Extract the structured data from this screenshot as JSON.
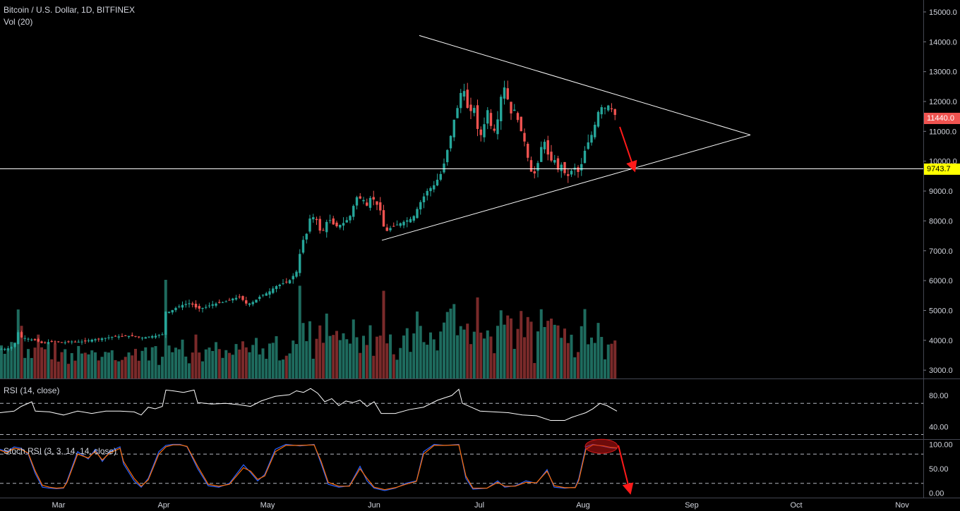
{
  "header": {
    "symbol_line": "Bitcoin / U.S. Dollar, 1D, BITFINEX",
    "volume_label": "Vol (20)"
  },
  "rsi_panel": {
    "label": "RSI (14, close)",
    "ticks": [
      "80.00",
      "40.00"
    ]
  },
  "stoch_panel": {
    "label": "Stoch RSI (3, 3, 14, 14, close)",
    "ticks": [
      "100.00",
      "50.00",
      "0.00"
    ]
  },
  "price_tags": {
    "last": "11440.0",
    "level": "9743.7"
  },
  "colors": {
    "up": "#26a69a",
    "down": "#ef5350",
    "level_tag": "#ffff00",
    "volume_up": "#1e6b5e",
    "volume_down": "#7a2a2a"
  },
  "chart_data": {
    "type": "candlestick",
    "title": "Bitcoin / U.S. Dollar, 1D, BITFINEX",
    "x_labels": [
      "Mar",
      "Apr",
      "May",
      "Jun",
      "Jul",
      "Aug",
      "Sep",
      "Oct",
      "Nov"
    ],
    "y_ticks": [
      "15000.0",
      "14000.0",
      "13000.0",
      "12000.0",
      "11000.0",
      "10000.0",
      "9000.0",
      "8000.0",
      "7000.0",
      "6000.0",
      "5000.0",
      "4000.0",
      "3000.0"
    ],
    "ylim": [
      2650,
      15400
    ],
    "price_path": [
      [
        0,
        3700
      ],
      [
        10,
        3720
      ],
      [
        20,
        3800
      ],
      [
        25,
        4300
      ],
      [
        30,
        4100
      ],
      [
        40,
        4050
      ],
      [
        50,
        4000
      ],
      [
        60,
        3900
      ],
      [
        70,
        3950
      ],
      [
        80,
        3950
      ],
      [
        90,
        3920
      ],
      [
        100,
        3960
      ],
      [
        110,
        3950
      ],
      [
        120,
        3960
      ],
      [
        130,
        4020
      ],
      [
        140,
        4050
      ],
      [
        150,
        4080
      ],
      [
        160,
        4120
      ],
      [
        170,
        4130
      ],
      [
        180,
        4150
      ],
      [
        190,
        4140
      ],
      [
        200,
        4080
      ],
      [
        210,
        4120
      ],
      [
        220,
        4150
      ],
      [
        230,
        4200
      ],
      [
        235,
        5000
      ],
      [
        240,
        4950
      ],
      [
        250,
        5100
      ],
      [
        260,
        5200
      ],
      [
        270,
        5250
      ],
      [
        280,
        5050
      ],
      [
        290,
        5100
      ],
      [
        300,
        5200
      ],
      [
        310,
        5250
      ],
      [
        320,
        5300
      ],
      [
        330,
        5400
      ],
      [
        340,
        5450
      ],
      [
        350,
        5200
      ],
      [
        360,
        5300
      ],
      [
        370,
        5500
      ],
      [
        380,
        5600
      ],
      [
        390,
        5800
      ],
      [
        400,
        5900
      ],
      [
        410,
        6000
      ],
      [
        420,
        6300
      ],
      [
        428,
        7300
      ],
      [
        435,
        7600
      ],
      [
        440,
        8200
      ],
      [
        450,
        8000
      ],
      [
        455,
        7500
      ],
      [
        465,
        8100
      ],
      [
        475,
        7800
      ],
      [
        485,
        7900
      ],
      [
        495,
        8100
      ],
      [
        505,
        8800
      ],
      [
        515,
        8700
      ],
      [
        520,
        8500
      ],
      [
        525,
        8800
      ],
      [
        530,
        8700
      ],
      [
        540,
        8300
      ],
      [
        545,
        7600
      ],
      [
        555,
        7800
      ],
      [
        565,
        7900
      ],
      [
        575,
        8000
      ],
      [
        585,
        8100
      ],
      [
        595,
        8600
      ],
      [
        605,
        9000
      ],
      [
        615,
        9200
      ],
      [
        625,
        9600
      ],
      [
        630,
        10000
      ],
      [
        640,
        11000
      ],
      [
        645,
        11600
      ],
      [
        650,
        11900
      ],
      [
        655,
        12600
      ],
      [
        660,
        12100
      ],
      [
        665,
        11400
      ],
      [
        670,
        12100
      ],
      [
        675,
        11200
      ],
      [
        680,
        10800
      ],
      [
        685,
        11100
      ],
      [
        690,
        11800
      ],
      [
        695,
        11200
      ],
      [
        700,
        11000
      ],
      [
        705,
        11400
      ],
      [
        710,
        12200
      ],
      [
        715,
        12500
      ],
      [
        720,
        12000
      ],
      [
        725,
        11500
      ],
      [
        730,
        11800
      ],
      [
        735,
        11200
      ],
      [
        740,
        10900
      ],
      [
        745,
        10500
      ],
      [
        750,
        9800
      ],
      [
        755,
        9500
      ],
      [
        760,
        9700
      ],
      [
        765,
        10300
      ],
      [
        770,
        10800
      ],
      [
        775,
        10300
      ],
      [
        780,
        10000
      ],
      [
        785,
        10100
      ],
      [
        790,
        9700
      ],
      [
        795,
        9900
      ],
      [
        800,
        9600
      ],
      [
        805,
        9500
      ],
      [
        810,
        9700
      ],
      [
        815,
        9800
      ],
      [
        820,
        9600
      ],
      [
        825,
        10000
      ],
      [
        830,
        10500
      ],
      [
        835,
        10700
      ],
      [
        840,
        11000
      ],
      [
        845,
        11400
      ],
      [
        850,
        11900
      ],
      [
        855,
        11700
      ],
      [
        860,
        11900
      ],
      [
        865,
        11800
      ],
      [
        870,
        11600
      ],
      [
        874,
        11440
      ]
    ],
    "last_price": 11440.0,
    "horizontal_level": 9743.7,
    "triangle": {
      "upper": [
        [
          594,
          14210
        ],
        [
          1063,
          10880
        ]
      ],
      "lower": [
        [
          541,
          7350
        ],
        [
          1063,
          10880
        ]
      ]
    },
    "projection_arrow": [
      [
        878,
        11150
      ],
      [
        898,
        9760
      ]
    ],
    "rsi": {
      "ylim": [
        25,
        100
      ],
      "levels": [
        70,
        30
      ],
      "path": [
        [
          0,
          58
        ],
        [
          20,
          60
        ],
        [
          30,
          66
        ],
        [
          45,
          72
        ],
        [
          50,
          60
        ],
        [
          70,
          59
        ],
        [
          90,
          55
        ],
        [
          110,
          60
        ],
        [
          130,
          57
        ],
        [
          150,
          60
        ],
        [
          170,
          60
        ],
        [
          190,
          59
        ],
        [
          200,
          55
        ],
        [
          210,
          65
        ],
        [
          220,
          63
        ],
        [
          230,
          66
        ],
        [
          235,
          87
        ],
        [
          245,
          86
        ],
        [
          260,
          84
        ],
        [
          275,
          87
        ],
        [
          280,
          71
        ],
        [
          300,
          69
        ],
        [
          320,
          70
        ],
        [
          340,
          68
        ],
        [
          355,
          66
        ],
        [
          370,
          73
        ],
        [
          390,
          79
        ],
        [
          410,
          81
        ],
        [
          420,
          86
        ],
        [
          430,
          84
        ],
        [
          440,
          89
        ],
        [
          450,
          83
        ],
        [
          460,
          72
        ],
        [
          470,
          76
        ],
        [
          480,
          67
        ],
        [
          490,
          73
        ],
        [
          500,
          71
        ],
        [
          510,
          74
        ],
        [
          520,
          66
        ],
        [
          530,
          72
        ],
        [
          540,
          57
        ],
        [
          560,
          57
        ],
        [
          580,
          62
        ],
        [
          600,
          65
        ],
        [
          620,
          74
        ],
        [
          640,
          80
        ],
        [
          650,
          88
        ],
        [
          655,
          70
        ],
        [
          670,
          64
        ],
        [
          680,
          60
        ],
        [
          700,
          59
        ],
        [
          720,
          58
        ],
        [
          740,
          55
        ],
        [
          760,
          54
        ],
        [
          780,
          48
        ],
        [
          800,
          48
        ],
        [
          810,
          52
        ],
        [
          820,
          55
        ],
        [
          830,
          58
        ],
        [
          840,
          63
        ],
        [
          850,
          70
        ],
        [
          860,
          67
        ],
        [
          874,
          60
        ]
      ]
    },
    "stoch_rsi": {
      "ylim": [
        -8,
        108
      ],
      "levels": [
        80,
        20
      ],
      "k": [
        [
          0,
          90
        ],
        [
          10,
          85
        ],
        [
          20,
          95
        ],
        [
          30,
          92
        ],
        [
          40,
          80
        ],
        [
          50,
          40
        ],
        [
          60,
          12
        ],
        [
          70,
          10
        ],
        [
          80,
          9
        ],
        [
          90,
          10
        ],
        [
          95,
          25
        ],
        [
          110,
          85
        ],
        [
          125,
          70
        ],
        [
          135,
          90
        ],
        [
          145,
          65
        ],
        [
          155,
          85
        ],
        [
          170,
          95
        ],
        [
          175,
          60
        ],
        [
          190,
          25
        ],
        [
          200,
          12
        ],
        [
          210,
          30
        ],
        [
          225,
          85
        ],
        [
          235,
          98
        ],
        [
          245,
          100
        ],
        [
          255,
          100
        ],
        [
          265,
          95
        ],
        [
          280,
          50
        ],
        [
          295,
          15
        ],
        [
          310,
          12
        ],
        [
          325,
          20
        ],
        [
          345,
          58
        ],
        [
          355,
          42
        ],
        [
          365,
          25
        ],
        [
          375,
          38
        ],
        [
          390,
          90
        ],
        [
          405,
          100
        ],
        [
          425,
          97
        ],
        [
          445,
          100
        ],
        [
          455,
          60
        ],
        [
          465,
          18
        ],
        [
          480,
          12
        ],
        [
          495,
          15
        ],
        [
          510,
          55
        ],
        [
          520,
          25
        ],
        [
          530,
          10
        ],
        [
          545,
          5
        ],
        [
          560,
          10
        ],
        [
          575,
          20
        ],
        [
          590,
          25
        ],
        [
          600,
          85
        ],
        [
          615,
          100
        ],
        [
          630,
          98
        ],
        [
          650,
          100
        ],
        [
          660,
          30
        ],
        [
          670,
          8
        ],
        [
          690,
          10
        ],
        [
          705,
          25
        ],
        [
          715,
          12
        ],
        [
          730,
          15
        ],
        [
          745,
          25
        ],
        [
          760,
          20
        ],
        [
          775,
          48
        ],
        [
          785,
          12
        ],
        [
          800,
          10
        ],
        [
          815,
          12
        ],
        [
          820,
          30
        ],
        [
          830,
          95
        ],
        [
          840,
          100
        ],
        [
          855,
          96
        ],
        [
          865,
          93
        ],
        [
          874,
          92
        ]
      ],
      "d": [
        [
          0,
          88
        ],
        [
          10,
          83
        ],
        [
          20,
          92
        ],
        [
          30,
          90
        ],
        [
          40,
          82
        ],
        [
          50,
          45
        ],
        [
          60,
          16
        ],
        [
          70,
          12
        ],
        [
          80,
          10
        ],
        [
          90,
          11
        ],
        [
          95,
          22
        ],
        [
          110,
          80
        ],
        [
          125,
          72
        ],
        [
          135,
          86
        ],
        [
          145,
          68
        ],
        [
          155,
          82
        ],
        [
          170,
          92
        ],
        [
          175,
          65
        ],
        [
          190,
          30
        ],
        [
          200,
          14
        ],
        [
          210,
          27
        ],
        [
          225,
          80
        ],
        [
          235,
          95
        ],
        [
          245,
          99
        ],
        [
          255,
          99
        ],
        [
          265,
          96
        ],
        [
          280,
          55
        ],
        [
          295,
          18
        ],
        [
          310,
          14
        ],
        [
          325,
          18
        ],
        [
          345,
          52
        ],
        [
          355,
          45
        ],
        [
          365,
          28
        ],
        [
          375,
          35
        ],
        [
          390,
          85
        ],
        [
          405,
          98
        ],
        [
          425,
          98
        ],
        [
          445,
          99
        ],
        [
          455,
          65
        ],
        [
          465,
          22
        ],
        [
          480,
          14
        ],
        [
          495,
          14
        ],
        [
          510,
          50
        ],
        [
          520,
          30
        ],
        [
          530,
          12
        ],
        [
          545,
          7
        ],
        [
          560,
          11
        ],
        [
          575,
          18
        ],
        [
          590,
          24
        ],
        [
          600,
          80
        ],
        [
          615,
          98
        ],
        [
          630,
          98
        ],
        [
          650,
          99
        ],
        [
          660,
          35
        ],
        [
          670,
          10
        ],
        [
          690,
          10
        ],
        [
          705,
          22
        ],
        [
          715,
          14
        ],
        [
          730,
          14
        ],
        [
          745,
          22
        ],
        [
          760,
          21
        ],
        [
          775,
          45
        ],
        [
          785,
          15
        ],
        [
          800,
          11
        ],
        [
          815,
          11
        ],
        [
          820,
          26
        ],
        [
          830,
          90
        ],
        [
          840,
          99
        ],
        [
          855,
          97
        ],
        [
          865,
          94
        ],
        [
          874,
          93
        ]
      ],
      "highlight_center": [
        852,
        96
      ],
      "projection_arrow": [
        [
          876,
          98
        ],
        [
          892,
          5
        ]
      ]
    }
  }
}
